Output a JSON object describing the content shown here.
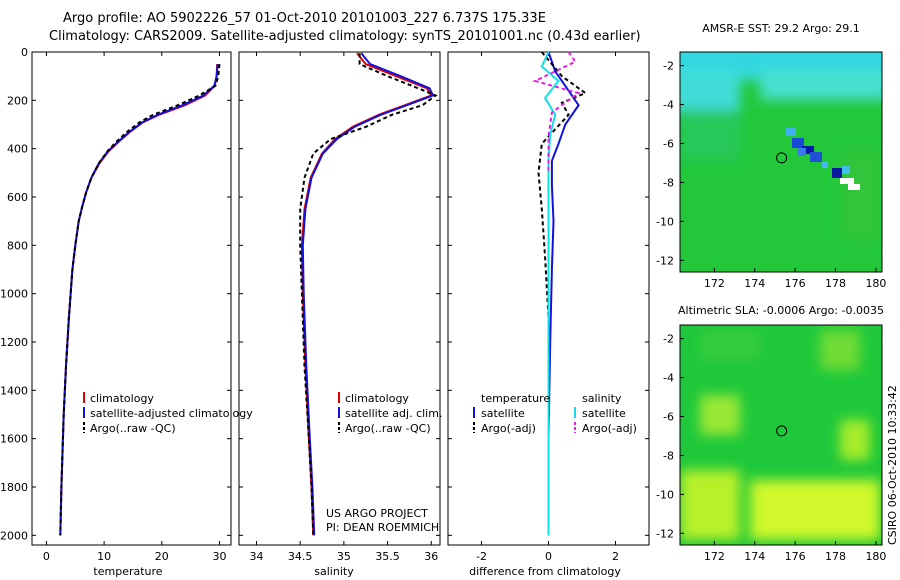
{
  "header": {
    "line1": "Argo profile: AO 5902226_57 01-Oct-2010 20101003_227 6.737S 175.33E",
    "line2": "Climatology: CARS2009. Satellite-adjusted climatology: synTS_20101001.nc (0.43d earlier)"
  },
  "credits": {
    "project": "US ARGO PROJECT",
    "pi": "PI: DEAN ROEMMICH",
    "side": "CSIRO 06-Oct-2010 10:33:42"
  },
  "colors": {
    "climatology": "#e00000",
    "satellite": "#1010e0",
    "argo": "#000000",
    "salinity_sat": "#10e0e8",
    "salinity_argo": "#e020e0",
    "marker": "#000000"
  },
  "chart_data": [
    {
      "type": "line",
      "name": "temperature-panel",
      "xlabel": "temperature",
      "xlim": [
        -2.5,
        32
      ],
      "ylim": [
        2040,
        0
      ],
      "xticks": [
        0,
        10,
        20,
        30
      ],
      "yticks": [
        0,
        200,
        400,
        600,
        800,
        1000,
        1200,
        1400,
        1600,
        1800,
        2000
      ],
      "legend": [
        "climatology",
        "satellite-adjusted climatology",
        "Argo(..raw -QC)"
      ],
      "series": [
        {
          "name": "climatology",
          "color_key": "climatology",
          "dash": "",
          "x": [
            29.6,
            29.5,
            29.2,
            27.5,
            24,
            19.5,
            16.8,
            14.5,
            12.6,
            10.8,
            9.2,
            7.8,
            6.9,
            6.2,
            5.6,
            5.0,
            4.5,
            3.9,
            3.4,
            3.0,
            2.6,
            2.4
          ],
          "y": [
            50,
            100,
            140,
            180,
            220,
            260,
            290,
            330,
            370,
            410,
            460,
            520,
            580,
            640,
            700,
            800,
            900,
            1100,
            1300,
            1500,
            1800,
            2000
          ]
        },
        {
          "name": "satellite-adjusted",
          "color_key": "satellite",
          "dash": "",
          "x": [
            29.7,
            29.5,
            29.1,
            27.2,
            23.6,
            19.3,
            16.7,
            14.4,
            12.5,
            10.7,
            9.1,
            7.8,
            6.9,
            6.2,
            5.6,
            5.0,
            4.5,
            3.9,
            3.4,
            3.0,
            2.6,
            2.4
          ],
          "y": [
            50,
            100,
            140,
            180,
            220,
            260,
            290,
            330,
            370,
            410,
            460,
            520,
            580,
            640,
            700,
            800,
            900,
            1100,
            1300,
            1500,
            1800,
            2000
          ]
        },
        {
          "name": "argo",
          "color_key": "argo",
          "dash": "4,3",
          "x": [
            30.0,
            29.8,
            29.3,
            26.5,
            22.8,
            18.5,
            16.2,
            14.0,
            12.2,
            10.6,
            9.1,
            7.8,
            6.9,
            6.2,
            5.6,
            5.0,
            4.5,
            3.9,
            3.4,
            3.0,
            2.6,
            2.4
          ],
          "y": [
            50,
            100,
            140,
            180,
            220,
            260,
            290,
            330,
            370,
            410,
            460,
            520,
            580,
            640,
            700,
            800,
            900,
            1100,
            1300,
            1500,
            1800,
            2000
          ]
        }
      ]
    },
    {
      "type": "line",
      "name": "salinity-panel",
      "xlabel": "salinity",
      "xlim": [
        33.8,
        36.1
      ],
      "ylim": [
        2040,
        0
      ],
      "xticks": [
        34,
        34.5,
        35,
        35.5,
        36
      ],
      "legend": [
        "climatology",
        "satellite adj. clim.",
        "Argo(..raw -QC)"
      ],
      "series": [
        {
          "name": "climatology",
          "color_key": "climatology",
          "dash": "",
          "x": [
            35.15,
            35.25,
            35.6,
            35.95,
            36.0,
            35.7,
            35.4,
            35.1,
            34.9,
            34.75,
            34.62,
            34.55,
            34.52,
            34.53,
            34.56,
            34.6,
            34.63,
            34.65
          ],
          "y": [
            5,
            50,
            100,
            150,
            180,
            220,
            260,
            310,
            360,
            420,
            520,
            650,
            800,
            1000,
            1300,
            1600,
            1800,
            2000
          ]
        },
        {
          "name": "satellite-adjusted",
          "color_key": "satellite",
          "dash": "",
          "x": [
            35.2,
            35.3,
            35.65,
            35.98,
            36.02,
            35.72,
            35.42,
            35.12,
            34.92,
            34.76,
            34.63,
            34.56,
            34.53,
            34.54,
            34.57,
            34.61,
            34.64,
            34.66
          ],
          "y": [
            5,
            50,
            100,
            150,
            180,
            220,
            260,
            310,
            360,
            420,
            520,
            650,
            800,
            1000,
            1300,
            1600,
            1800,
            2000
          ]
        },
        {
          "name": "argo",
          "color_key": "argo",
          "dash": "4,3",
          "x": [
            35.18,
            35.18,
            35.5,
            35.85,
            36.05,
            35.9,
            35.55,
            35.25,
            34.85,
            34.65,
            34.55,
            34.5,
            34.5,
            34.52,
            34.55,
            34.6,
            34.63,
            34.65
          ],
          "y": [
            5,
            50,
            100,
            150,
            180,
            220,
            260,
            310,
            360,
            420,
            520,
            650,
            800,
            1000,
            1300,
            1600,
            1800,
            2000
          ]
        }
      ]
    },
    {
      "type": "line",
      "name": "difference-panel",
      "xlabel": "difference from climatology",
      "xlim": [
        -3,
        3
      ],
      "ylim": [
        2040,
        0
      ],
      "xticks": [
        -2,
        0,
        2
      ],
      "legend_titles": [
        "temperature",
        "salinity"
      ],
      "legend_left": [
        "satellite",
        "Argo(-adj)"
      ],
      "legend_right": [
        "satellite",
        "Argo(-adj)"
      ],
      "series": [
        {
          "name": "temperature satellite",
          "color_key": "satellite",
          "dash": "",
          "x": [
            0,
            0.2,
            0.6,
            0.9,
            0.5,
            0.3,
            0.1,
            0.1,
            0.15,
            0.1,
            0.05,
            0.0,
            0.0
          ],
          "y": [
            0,
            80,
            160,
            220,
            300,
            380,
            450,
            550,
            700,
            900,
            1200,
            1600,
            2000
          ]
        },
        {
          "name": "temperature argo",
          "color_key": "argo",
          "dash": "4,3",
          "x": [
            -0.2,
            0.4,
            1.1,
            0.4,
            0.6,
            -0.2,
            -0.3,
            -0.2,
            -0.1,
            0.0,
            0.0
          ],
          "y": [
            0,
            100,
            170,
            210,
            260,
            380,
            500,
            650,
            850,
            1100,
            2000
          ]
        },
        {
          "name": "salinity satellite",
          "color_key": "salinity_sat",
          "dash": "",
          "x": [
            0,
            -0.2,
            0.3,
            -0.1,
            0.2,
            0.05,
            0.0,
            0.0,
            0.0
          ],
          "y": [
            0,
            60,
            120,
            190,
            260,
            340,
            450,
            700,
            2000
          ]
        },
        {
          "name": "salinity argo",
          "color_key": "salinity_argo",
          "dash": "4,3",
          "x": [
            0.6,
            0.8,
            -0.4,
            0.9,
            0.1,
            0.0,
            0.0
          ],
          "y": [
            0,
            40,
            120,
            170,
            250,
            350,
            500
          ]
        }
      ]
    },
    {
      "type": "heatmap",
      "name": "sst-map",
      "title": "AMSR-E SST: 29.2 Argo: 29.1",
      "xlim": [
        170.3,
        180.3
      ],
      "ylim": [
        -12.6,
        -1.3
      ],
      "xticks": [
        172,
        174,
        176,
        178,
        180
      ],
      "yticks": [
        -2,
        -4,
        -6,
        -8,
        -10,
        -12
      ],
      "argo_position": {
        "lon": 175.33,
        "lat": -6.74
      }
    },
    {
      "type": "heatmap",
      "name": "sla-map",
      "title": "Altimetric SLA: -0.0006 Argo: -0.0035",
      "xlim": [
        170.3,
        180.3
      ],
      "ylim": [
        -12.6,
        -1.3
      ],
      "xticks": [
        172,
        174,
        176,
        178,
        180
      ],
      "yticks": [
        -2,
        -4,
        -6,
        -8,
        -10,
        -12
      ],
      "argo_position": {
        "lon": 175.33,
        "lat": -6.74
      }
    }
  ]
}
